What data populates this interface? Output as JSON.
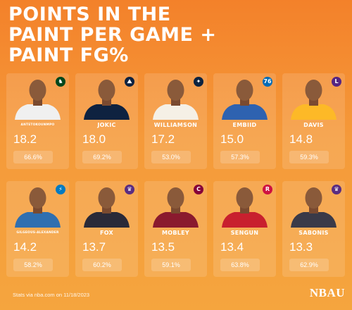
{
  "title_lines": [
    "POINTS IN THE",
    "PAINT PER GAME +",
    "PAINT FG%"
  ],
  "players": [
    {
      "name": "ANTETOKOUNMPO",
      "ppg": "18.2",
      "fg": "66.6%",
      "team_color": "#00471b",
      "logo": "bucks-logo-icon",
      "jersey": "#f0f0f0"
    },
    {
      "name": "JOKIC",
      "ppg": "18.0",
      "fg": "69.2%",
      "team_color": "#0e2240",
      "logo": "nuggets-logo-icon",
      "jersey": "#0e2240"
    },
    {
      "name": "WILLIAMSON",
      "ppg": "17.2",
      "fg": "53.0%",
      "team_color": "#0c2340",
      "logo": "pelicans-logo-icon",
      "jersey": "#f5f0e6"
    },
    {
      "name": "EMBIID",
      "ppg": "15.0",
      "fg": "57.3%",
      "team_color": "#006bb6",
      "logo": "76ers-logo-icon",
      "jersey": "#2e62b0"
    },
    {
      "name": "DAVIS",
      "ppg": "14.8",
      "fg": "59.3%",
      "team_color": "#552583",
      "logo": "lakers-logo-icon",
      "jersey": "#fdb927"
    },
    {
      "name": "GILGEOUS-ALEXANDER",
      "ppg": "14.2",
      "fg": "58.2%",
      "team_color": "#007ac1",
      "logo": "thunder-logo-icon",
      "jersey": "#2f6fb0"
    },
    {
      "name": "FOX",
      "ppg": "13.7",
      "fg": "60.2%",
      "team_color": "#5a2d81",
      "logo": "kings-logo-icon",
      "jersey": "#2a2a38"
    },
    {
      "name": "MOBLEY",
      "ppg": "13.5",
      "fg": "59.1%",
      "team_color": "#860038",
      "logo": "cavaliers-logo-icon",
      "jersey": "#8a1a2e"
    },
    {
      "name": "SENGUN",
      "ppg": "13.4",
      "fg": "63.8%",
      "team_color": "#ce1141",
      "logo": "rockets-logo-icon",
      "jersey": "#c8202e"
    },
    {
      "name": "SABONIS",
      "ppg": "13.3",
      "fg": "62.9%",
      "team_color": "#5a2d81",
      "logo": "kings-logo-icon",
      "jersey": "#3a3a48"
    }
  ],
  "logo_glyphs": [
    "♞",
    "⛰",
    "✦",
    "76",
    "L",
    "⚡",
    "♛",
    "C",
    "R",
    "♛"
  ],
  "footer": "Stats via nba.com on 11/18/2023",
  "brand": "NBAU"
}
